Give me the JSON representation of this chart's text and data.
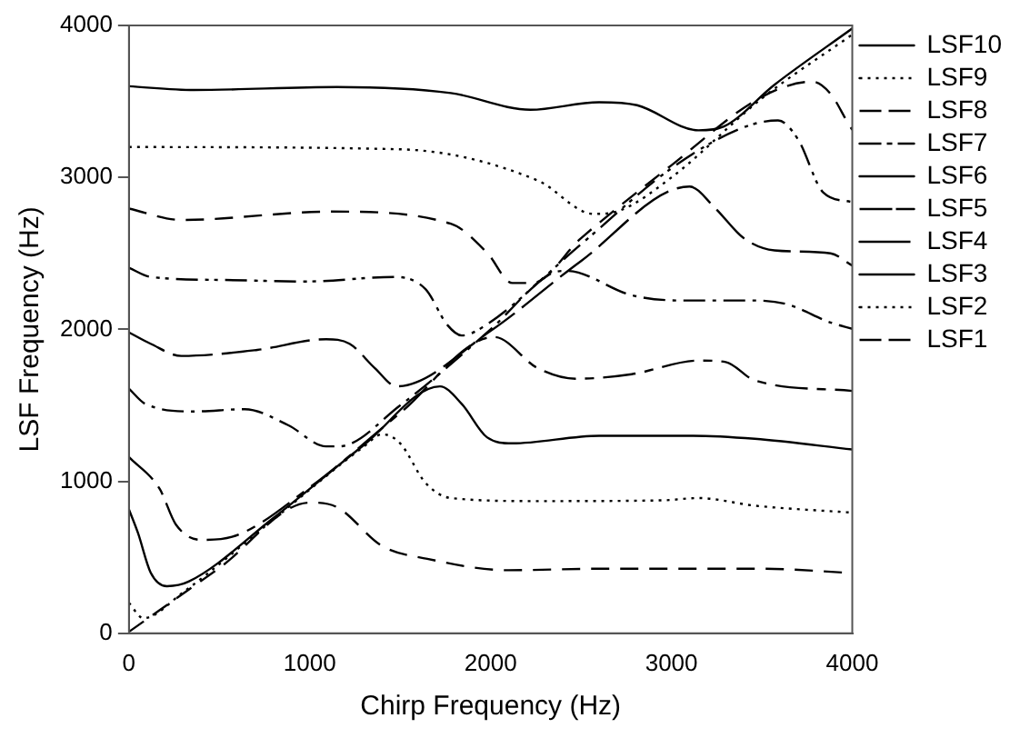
{
  "chart_data": {
    "type": "line",
    "xlabel": "Chirp Frequency (Hz)",
    "ylabel": "LSF Frequency (Hz)",
    "xlim": [
      0,
      4000
    ],
    "xticks": [
      0,
      1000,
      2000,
      3000,
      4000
    ],
    "ylim": [
      0,
      4000
    ],
    "yticks": [
      0,
      1000,
      2000,
      3000,
      4000
    ],
    "grid": false,
    "legend": "right",
    "marker": "none",
    "series": [
      {
        "name": "LSF10",
        "color": "#000000",
        "line_style": "solid",
        "x": [
          0,
          360,
          1150,
          1780,
          2220,
          2600,
          2810,
          3150,
          3290,
          3570,
          4000
        ],
        "values": [
          3600,
          3575,
          3595,
          3555,
          3445,
          3495,
          3475,
          3310,
          3335,
          3610,
          3980
        ]
      },
      {
        "name": "LSF9",
        "color": "#000000",
        "line_style": "dotted",
        "x": [
          0,
          1500,
          2260,
          2570,
          2710,
          3000,
          3500,
          4000
        ],
        "values": [
          3200,
          3185,
          2980,
          2760,
          2780,
          3000,
          3520,
          3940
        ]
      },
      {
        "name": "LSF8",
        "color": "#000000",
        "line_style": "dashed",
        "x": [
          0,
          290,
          1120,
          1780,
          1980,
          2120,
          2230,
          2500,
          3000,
          3500,
          3780,
          3880,
          3980,
          4000
        ],
        "values": [
          2795,
          2720,
          2775,
          2695,
          2505,
          2305,
          2305,
          2600,
          3080,
          3530,
          3630,
          3550,
          3350,
          3313
        ]
      },
      {
        "name": "LSF7",
        "color": "#000000",
        "line_style": "dashdotdot",
        "x": [
          0,
          120,
          530,
          980,
          1470,
          1640,
          1760,
          1840,
          1950,
          2500,
          3000,
          3400,
          3590,
          3700,
          3840,
          4000
        ],
        "values": [
          2405,
          2345,
          2325,
          2315,
          2345,
          2265,
          2030,
          1960,
          2010,
          2560,
          3060,
          3330,
          3375,
          3250,
          2900,
          2837
        ]
      },
      {
        "name": "LSF6",
        "color": "#000000",
        "line_style": "longdash",
        "x": [
          0,
          120,
          290,
          710,
          1090,
          1220,
          1360,
          1480,
          2000,
          2500,
          3100,
          3240,
          3400,
          3570,
          3880,
          4000
        ],
        "values": [
          1980,
          1905,
          1825,
          1865,
          1935,
          1905,
          1745,
          1625,
          1990,
          2450,
          2940,
          2800,
          2600,
          2520,
          2500,
          2420
        ]
      },
      {
        "name": "LSF5",
        "color": "#000000",
        "line_style": "dashdot",
        "x": [
          0,
          90,
          360,
          640,
          880,
          1090,
          1160,
          1500,
          2000,
          2330,
          2420,
          2780,
          3050,
          3460,
          3640,
          3880,
          4000
        ],
        "values": [
          1610,
          1510,
          1460,
          1475,
          1370,
          1230,
          1230,
          1500,
          2000,
          2365,
          2385,
          2225,
          2190,
          2190,
          2165,
          2045,
          2004
        ]
      },
      {
        "name": "LSF4",
        "color": "#000000",
        "line_style": "longshort",
        "x": [
          0,
          170,
          260,
          400,
          570,
          1000,
          1500,
          2020,
          2260,
          2470,
          2780,
          3150,
          3300,
          3460,
          4000
        ],
        "values": [
          1160,
          950,
          715,
          615,
          635,
          960,
          1450,
          1950,
          1745,
          1675,
          1705,
          1795,
          1785,
          1665,
          1595
        ]
      },
      {
        "name": "LSF3",
        "color": "#000000",
        "line_style": "solid",
        "x": [
          0,
          50,
          120,
          210,
          330,
          800,
          1300,
          1720,
          1840,
          1980,
          2120,
          2600,
          3120,
          3460,
          4000
        ],
        "values": [
          815,
          660,
          400,
          310,
          340,
          760,
          1240,
          1625,
          1510,
          1290,
          1250,
          1300,
          1300,
          1280,
          1210
        ]
      },
      {
        "name": "LSF2",
        "color": "#000000",
        "line_style": "dotted",
        "x": [
          0,
          80,
          300,
          800,
          1300,
          1400,
          1500,
          1640,
          1780,
          2260,
          2950,
          3150,
          3460,
          4000
        ],
        "values": [
          200,
          100,
          270,
          750,
          1230,
          1310,
          1250,
          990,
          890,
          870,
          875,
          890,
          840,
          794
        ]
      },
      {
        "name": "LSF1",
        "color": "#000000",
        "line_style": "dashed",
        "x": [
          0,
          500,
          1000,
          1150,
          1400,
          1650,
          2100,
          2600,
          3500,
          4000
        ],
        "values": [
          10,
          430,
          860,
          830,
          575,
          490,
          415,
          425,
          425,
          397
        ]
      }
    ]
  }
}
